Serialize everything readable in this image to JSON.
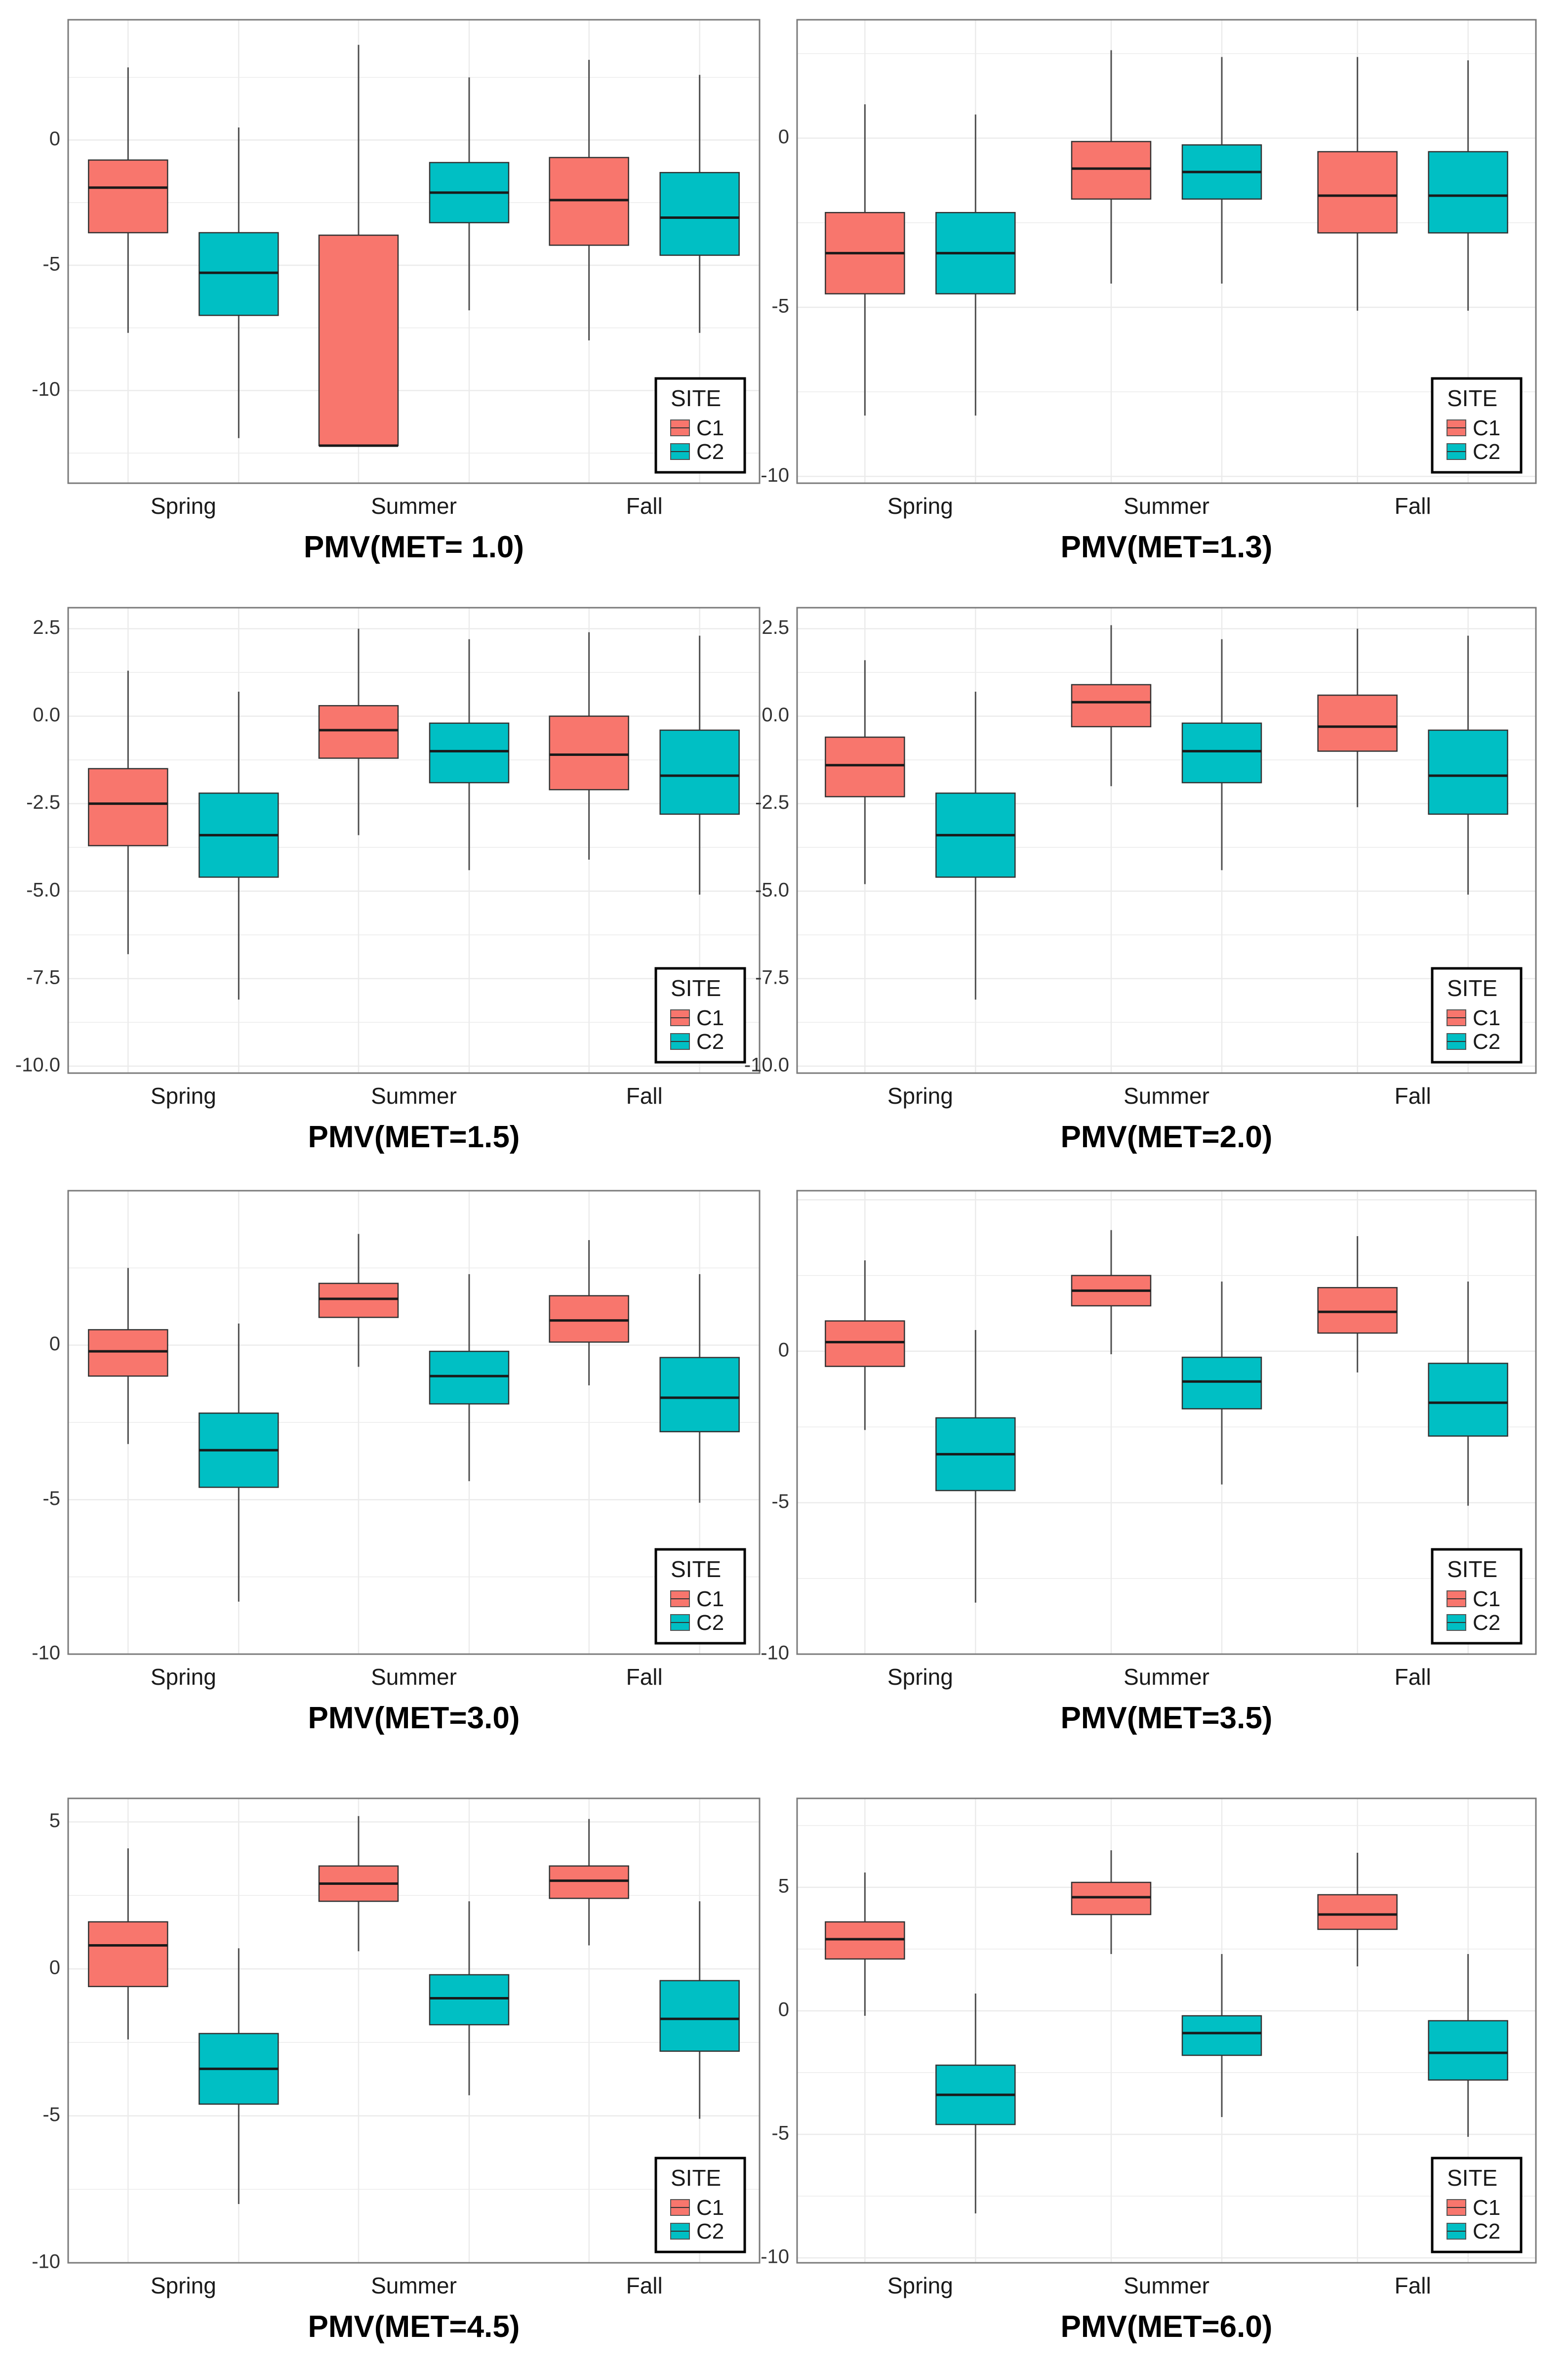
{
  "colors": {
    "C1": "#F8766D",
    "C2": "#00BFC4",
    "grid": "#ebebeb",
    "frame": "#7a7a7a",
    "text": "#1a1a1a"
  },
  "chart_data": [
    {
      "type": "box",
      "title": "PMV(MET= 1.0)",
      "categories": [
        "Spring",
        "Summer",
        "Fall"
      ],
      "ylim": [
        -13.7,
        4.8
      ],
      "yticks": [
        0,
        -5,
        -10
      ],
      "grid": true,
      "legend": {
        "title": "SITE",
        "entries": [
          "C1",
          "C2"
        ],
        "position": "bottom-right"
      },
      "series": [
        {
          "name": "C1",
          "boxes": [
            {
              "min": -7.7,
              "q1": -3.7,
              "median": -1.9,
              "q3": -0.8,
              "max": 2.9
            },
            {
              "min": -12.2,
              "q1": -12.2,
              "median": -12.2,
              "q3": -3.8,
              "max": 3.8
            },
            {
              "min": -8.0,
              "q1": -4.2,
              "median": -2.4,
              "q3": -0.7,
              "max": 3.2
            }
          ]
        },
        {
          "name": "C2",
          "boxes": [
            {
              "min": -11.9,
              "q1": -7.0,
              "median": -5.3,
              "q3": -3.7,
              "max": 0.5
            },
            {
              "min": -6.8,
              "q1": -3.3,
              "median": -2.1,
              "q3": -0.9,
              "max": 2.5
            },
            {
              "min": -7.7,
              "q1": -4.6,
              "median": -3.1,
              "q3": -1.3,
              "max": 2.6
            }
          ]
        }
      ]
    },
    {
      "type": "box",
      "title": "PMV(MET=1.3)",
      "categories": [
        "Spring",
        "Summer",
        "Fall"
      ],
      "ylim": [
        -10.2,
        3.5
      ],
      "yticks": [
        0,
        -5,
        -10
      ],
      "grid": true,
      "legend": {
        "title": "SITE",
        "entries": [
          "C1",
          "C2"
        ],
        "position": "bottom-right"
      },
      "series": [
        {
          "name": "C1",
          "boxes": [
            {
              "min": -8.2,
              "q1": -4.6,
              "median": -3.4,
              "q3": -2.2,
              "max": 1.0
            },
            {
              "min": -4.3,
              "q1": -1.8,
              "median": -0.9,
              "q3": -0.1,
              "max": 2.6
            },
            {
              "min": -5.1,
              "q1": -2.8,
              "median": -1.7,
              "q3": -0.4,
              "max": 2.4
            }
          ]
        },
        {
          "name": "C2",
          "boxes": [
            {
              "min": -8.2,
              "q1": -4.6,
              "median": -3.4,
              "q3": -2.2,
              "max": 0.7
            },
            {
              "min": -4.3,
              "q1": -1.8,
              "median": -1.0,
              "q3": -0.2,
              "max": 2.4
            },
            {
              "min": -5.1,
              "q1": -2.8,
              "median": -1.7,
              "q3": -0.4,
              "max": 2.3
            }
          ]
        }
      ]
    },
    {
      "type": "box",
      "title": "PMV(MET=1.5)",
      "categories": [
        "Spring",
        "Summer",
        "Fall"
      ],
      "ylim": [
        -10.2,
        3.1
      ],
      "yticks": [
        2.5,
        0.0,
        -2.5,
        -5.0,
        -7.5,
        -10.0
      ],
      "ytick_labels": [
        "2.5",
        "0.0",
        "-2.5",
        "-5.0",
        "-7.5",
        "-10.0"
      ],
      "grid": true,
      "legend": {
        "title": "SITE",
        "entries": [
          "C1",
          "C2"
        ],
        "position": "bottom-right"
      },
      "series": [
        {
          "name": "C1",
          "boxes": [
            {
              "min": -6.8,
              "q1": -3.7,
              "median": -2.5,
              "q3": -1.5,
              "max": 1.3
            },
            {
              "min": -3.4,
              "q1": -1.2,
              "median": -0.4,
              "q3": 0.3,
              "max": 2.5
            },
            {
              "min": -4.1,
              "q1": -2.1,
              "median": -1.1,
              "q3": 0.0,
              "max": 2.4
            }
          ]
        },
        {
          "name": "C2",
          "boxes": [
            {
              "min": -8.1,
              "q1": -4.6,
              "median": -3.4,
              "q3": -2.2,
              "max": 0.7
            },
            {
              "min": -4.4,
              "q1": -1.9,
              "median": -1.0,
              "q3": -0.2,
              "max": 2.2
            },
            {
              "min": -5.1,
              "q1": -2.8,
              "median": -1.7,
              "q3": -0.4,
              "max": 2.3
            }
          ]
        }
      ]
    },
    {
      "type": "box",
      "title": "PMV(MET=2.0)",
      "categories": [
        "Spring",
        "Summer",
        "Fall"
      ],
      "ylim": [
        -10.2,
        3.1
      ],
      "yticks": [
        2.5,
        0.0,
        -2.5,
        -5.0,
        -7.5,
        -10.0
      ],
      "ytick_labels": [
        "2.5",
        "0.0",
        "-2.5",
        "-5.0",
        "-7.5",
        "-10.0"
      ],
      "grid": true,
      "legend": {
        "title": "SITE",
        "entries": [
          "C1",
          "C2"
        ],
        "position": "bottom-right"
      },
      "series": [
        {
          "name": "C1",
          "boxes": [
            {
              "min": -4.8,
              "q1": -2.3,
              "median": -1.4,
              "q3": -0.6,
              "max": 1.6
            },
            {
              "min": -2.0,
              "q1": -0.3,
              "median": 0.4,
              "q3": 0.9,
              "max": 2.6
            },
            {
              "min": -2.6,
              "q1": -1.0,
              "median": -0.3,
              "q3": 0.6,
              "max": 2.5
            }
          ]
        },
        {
          "name": "C2",
          "boxes": [
            {
              "min": -8.1,
              "q1": -4.6,
              "median": -3.4,
              "q3": -2.2,
              "max": 0.7
            },
            {
              "min": -4.4,
              "q1": -1.9,
              "median": -1.0,
              "q3": -0.2,
              "max": 2.2
            },
            {
              "min": -5.1,
              "q1": -2.8,
              "median": -1.7,
              "q3": -0.4,
              "max": 2.3
            }
          ]
        }
      ]
    },
    {
      "type": "box",
      "title": "PMV(MET=3.0)",
      "categories": [
        "Spring",
        "Summer",
        "Fall"
      ],
      "ylim": [
        -10.0,
        5.0
      ],
      "yticks": [
        0,
        -5,
        -10
      ],
      "grid": true,
      "legend": {
        "title": "SITE",
        "entries": [
          "C1",
          "C2"
        ],
        "position": "bottom-right"
      },
      "series": [
        {
          "name": "C1",
          "boxes": [
            {
              "min": -3.2,
              "q1": -1.0,
              "median": -0.2,
              "q3": 0.5,
              "max": 2.5
            },
            {
              "min": -0.7,
              "q1": 0.9,
              "median": 1.5,
              "q3": 2.0,
              "max": 3.6
            },
            {
              "min": -1.3,
              "q1": 0.1,
              "median": 0.8,
              "q3": 1.6,
              "max": 3.4
            }
          ]
        },
        {
          "name": "C2",
          "boxes": [
            {
              "min": -8.3,
              "q1": -4.6,
              "median": -3.4,
              "q3": -2.2,
              "max": 0.7
            },
            {
              "min": -4.4,
              "q1": -1.9,
              "median": -1.0,
              "q3": -0.2,
              "max": 2.3
            },
            {
              "min": -5.1,
              "q1": -2.8,
              "median": -1.7,
              "q3": -0.4,
              "max": 2.3
            }
          ]
        }
      ]
    },
    {
      "type": "box",
      "title": "PMV(MET=3.5)",
      "categories": [
        "Spring",
        "Summer",
        "Fall"
      ],
      "ylim": [
        -10.0,
        5.3
      ],
      "yticks": [
        0,
        -5,
        -10
      ],
      "grid": true,
      "legend": {
        "title": "SITE",
        "entries": [
          "C1",
          "C2"
        ],
        "position": "bottom-right"
      },
      "series": [
        {
          "name": "C1",
          "boxes": [
            {
              "min": -2.6,
              "q1": -0.5,
              "median": 0.3,
              "q3": 1.0,
              "max": 3.0
            },
            {
              "min": -0.1,
              "q1": 1.5,
              "median": 2.0,
              "q3": 2.5,
              "max": 4.0
            },
            {
              "min": -0.7,
              "q1": 0.6,
              "median": 1.3,
              "q3": 2.1,
              "max": 3.8
            }
          ]
        },
        {
          "name": "C2",
          "boxes": [
            {
              "min": -8.3,
              "q1": -4.6,
              "median": -3.4,
              "q3": -2.2,
              "max": 0.7
            },
            {
              "min": -4.4,
              "q1": -1.9,
              "median": -1.0,
              "q3": -0.2,
              "max": 2.3
            },
            {
              "min": -5.1,
              "q1": -2.8,
              "median": -1.7,
              "q3": -0.4,
              "max": 2.3
            }
          ]
        }
      ]
    },
    {
      "type": "box",
      "title": "PMV(MET=4.5)",
      "categories": [
        "Spring",
        "Summer",
        "Fall"
      ],
      "ylim": [
        -10.0,
        5.8
      ],
      "yticks": [
        5,
        0,
        -5,
        -10
      ],
      "grid": true,
      "legend": {
        "title": "SITE",
        "entries": [
          "C1",
          "C2"
        ],
        "position": "bottom-right"
      },
      "series": [
        {
          "name": "C1",
          "boxes": [
            {
              "min": -2.4,
              "q1": -0.6,
              "median": 0.8,
              "q3": 1.6,
              "max": 4.1
            },
            {
              "min": 0.6,
              "q1": 2.3,
              "median": 2.9,
              "q3": 3.5,
              "max": 5.2
            },
            {
              "min": 0.8,
              "q1": 2.4,
              "median": 3.0,
              "q3": 3.5,
              "max": 5.1
            }
          ]
        },
        {
          "name": "C2",
          "boxes": [
            {
              "min": -8.0,
              "q1": -4.6,
              "median": -3.4,
              "q3": -2.2,
              "max": 0.7
            },
            {
              "min": -4.3,
              "q1": -1.9,
              "median": -1.0,
              "q3": -0.2,
              "max": 2.3
            },
            {
              "min": -5.1,
              "q1": -2.8,
              "median": -1.7,
              "q3": -0.4,
              "max": 2.3
            }
          ]
        }
      ]
    },
    {
      "type": "box",
      "title": "PMV(MET=6.0)",
      "categories": [
        "Spring",
        "Summer",
        "Fall"
      ],
      "ylim": [
        -10.2,
        8.6
      ],
      "yticks": [
        5,
        0,
        -5,
        -10
      ],
      "grid": true,
      "legend": {
        "title": "SITE",
        "entries": [
          "C1",
          "C2"
        ],
        "position": "bottom-right"
      },
      "series": [
        {
          "name": "C1",
          "boxes": [
            {
              "min": -0.2,
              "q1": 2.1,
              "median": 2.9,
              "q3": 3.6,
              "max": 5.6
            },
            {
              "min": 2.3,
              "q1": 3.9,
              "median": 4.6,
              "q3": 5.2,
              "max": 6.5
            },
            {
              "min": 1.8,
              "q1": 3.3,
              "median": 3.9,
              "q3": 4.7,
              "max": 6.4
            }
          ]
        },
        {
          "name": "C2",
          "boxes": [
            {
              "min": -8.2,
              "q1": -4.6,
              "median": -3.4,
              "q3": -2.2,
              "max": 0.7
            },
            {
              "min": -4.3,
              "q1": -1.8,
              "median": -0.9,
              "q3": -0.2,
              "max": 2.3
            },
            {
              "min": -5.1,
              "q1": -2.8,
              "median": -1.7,
              "q3": -0.4,
              "max": 2.3
            }
          ]
        }
      ]
    }
  ]
}
